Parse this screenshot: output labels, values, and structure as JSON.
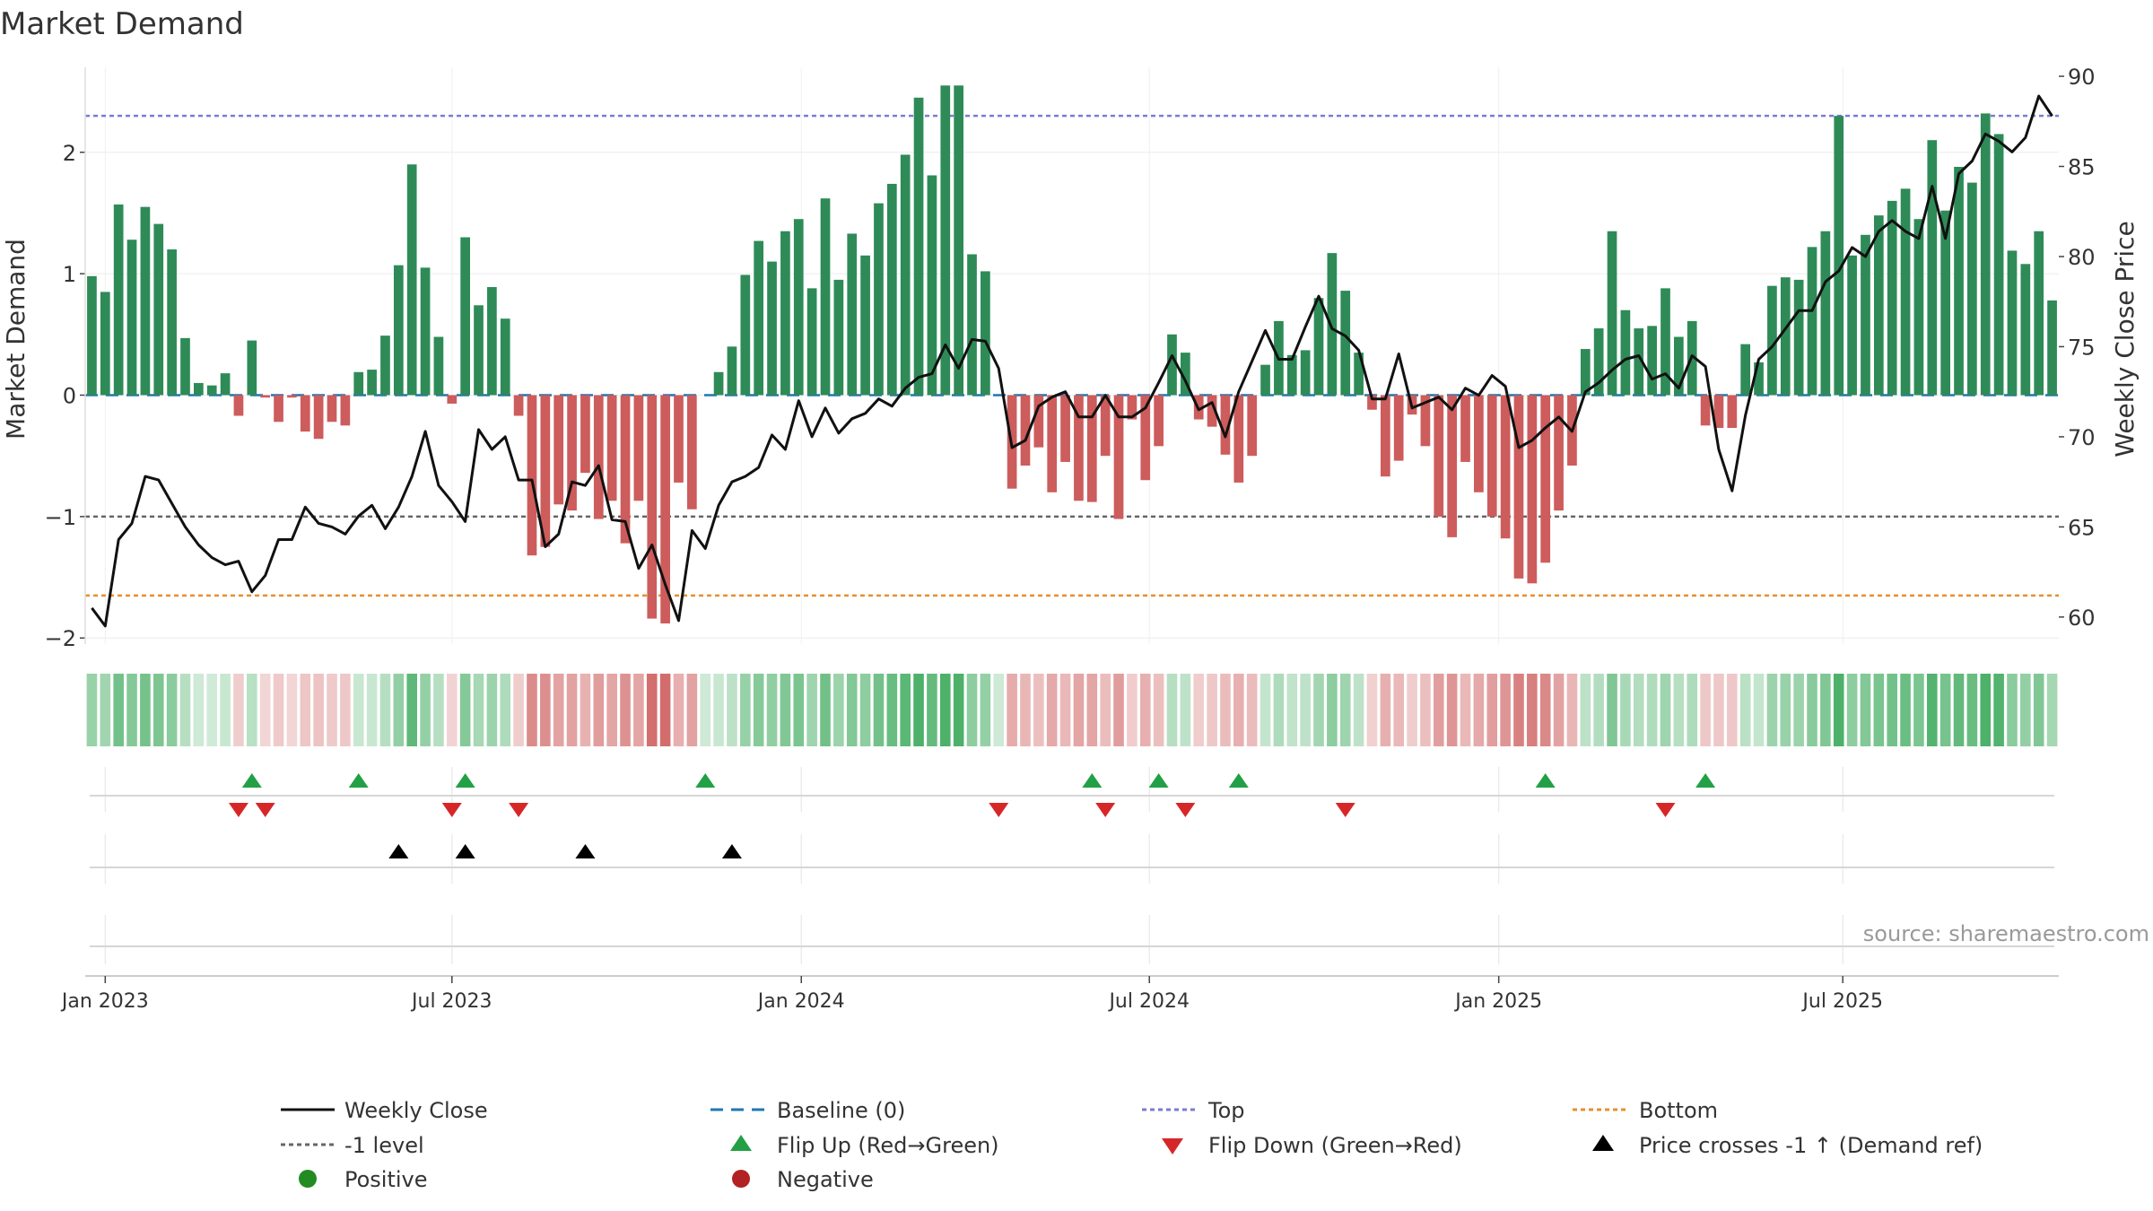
{
  "chart_data": {
    "type": "bar+line",
    "title": "Market Demand",
    "ylabel_left": "Market Demand",
    "ylabel_right": "Weekly Close Price",
    "source": "source: sharemaestro.com",
    "ylim_left": [
      -2.05,
      2.7
    ],
    "ylim_right": [
      58.5,
      90.5
    ],
    "yticks_left": [
      "2",
      "1",
      "0",
      "−1",
      "−2"
    ],
    "yticks_left_values": [
      2,
      1,
      0,
      -1,
      -2
    ],
    "yticks_right": [
      "90",
      "85",
      "80",
      "75",
      "70",
      "65",
      "60"
    ],
    "yticks_right_values": [
      90,
      85,
      80,
      75,
      70,
      65,
      60
    ],
    "x_ticks": [
      "Jan 2023",
      "Jul 2023",
      "Jan 2024",
      "Jul 2024",
      "Jan 2025",
      "Jul 2025"
    ],
    "x_tick_index": [
      1.5,
      27.5,
      53.7,
      79.8,
      106.0,
      131.8
    ],
    "reference_lines": {
      "top": 2.3,
      "bottom": -1.65,
      "minus_one": -1,
      "baseline": 0
    },
    "demand": [
      0.98,
      0.85,
      1.57,
      1.28,
      1.55,
      1.41,
      1.2,
      0.47,
      0.1,
      0.08,
      0.18,
      -0.17,
      0.45,
      -0.02,
      -0.22,
      -0.02,
      -0.3,
      -0.36,
      -0.22,
      -0.25,
      0.19,
      0.21,
      0.49,
      1.07,
      1.9,
      1.05,
      0.48,
      -0.07,
      1.3,
      0.74,
      0.89,
      0.63,
      -0.17,
      -1.32,
      -1.25,
      -0.9,
      -0.95,
      -0.64,
      -1.02,
      -0.87,
      -1.22,
      -0.87,
      -1.84,
      -1.88,
      -0.72,
      -0.94,
      0,
      0.19,
      0.4,
      0.99,
      1.27,
      1.1,
      1.35,
      1.45,
      0.88,
      1.62,
      0.95,
      1.33,
      1.15,
      1.58,
      1.74,
      1.98,
      2.45,
      1.81,
      2.55,
      2.55,
      1.16,
      1.02,
      0,
      -0.77,
      -0.58,
      -0.43,
      -0.8,
      -0.55,
      -0.87,
      -0.88,
      -0.5,
      -1.02,
      -0.2,
      -0.7,
      -0.42,
      0.5,
      0.35,
      -0.2,
      -0.26,
      -0.49,
      -0.72,
      -0.5,
      0.25,
      0.61,
      0.33,
      0.37,
      0.8,
      1.17,
      0.86,
      0.35,
      -0.12,
      -0.67,
      -0.54,
      -0.16,
      -0.42,
      -1.0,
      -1.17,
      -0.55,
      -0.8,
      -1.0,
      -1.18,
      -1.51,
      -1.55,
      -1.38,
      -0.95,
      -0.58,
      0.38,
      0.55,
      1.35,
      0.7,
      0.55,
      0.57,
      0.88,
      0.48,
      0.61,
      -0.25,
      -0.27,
      -0.27,
      0.42,
      0.27,
      0.9,
      0.97,
      0.95,
      1.22,
      1.35,
      2.3,
      1.15,
      1.32,
      1.48,
      1.6,
      1.7,
      1.45,
      2.1,
      1.52,
      1.88,
      1.75,
      2.32,
      2.15,
      1.19,
      1.08,
      1.35,
      0.78
    ],
    "close": [
      60.5,
      59.5,
      64.3,
      65.2,
      67.8,
      67.6,
      66.3,
      65.0,
      64.0,
      63.3,
      62.9,
      63.1,
      61.4,
      62.3,
      64.3,
      64.3,
      66.1,
      65.2,
      65.0,
      64.6,
      65.6,
      66.2,
      64.9,
      66.1,
      67.8,
      70.3,
      67.3,
      66.4,
      65.3,
      70.4,
      69.3,
      70.0,
      67.6,
      67.6,
      63.9,
      64.6,
      67.5,
      67.3,
      68.4,
      65.4,
      65.3,
      62.7,
      64.0,
      61.8,
      59.8,
      64.8,
      63.8,
      66.2,
      67.5,
      67.8,
      68.3,
      70.1,
      69.3,
      72.0,
      70.0,
      71.6,
      70.2,
      71.0,
      71.3,
      72.1,
      71.7,
      72.7,
      73.3,
      73.5,
      75.1,
      73.8,
      75.4,
      75.3,
      73.8,
      69.4,
      69.8,
      71.7,
      72.2,
      72.5,
      71.1,
      71.1,
      72.3,
      71.1,
      71.1,
      71.6,
      73.0,
      74.5,
      73.1,
      71.5,
      71.9,
      70.0,
      72.5,
      74.2,
      75.9,
      74.3,
      74.3,
      76.1,
      77.8,
      76.0,
      75.6,
      74.8,
      72.1,
      72.1,
      74.6,
      71.6,
      71.9,
      72.2,
      71.5,
      72.7,
      72.3,
      73.4,
      72.8,
      69.4,
      69.8,
      70.5,
      71.1,
      70.3,
      72.5,
      73.0,
      73.7,
      74.3,
      74.5,
      73.2,
      73.5,
      72.7,
      74.5,
      73.9,
      69.3,
      67.0,
      71.2,
      74.3,
      75.0,
      76.0,
      77.0,
      77.0,
      78.6,
      79.2,
      80.5,
      80.0,
      81.4,
      82.0,
      81.4,
      81.0,
      83.9,
      81.0,
      84.6,
      85.3,
      86.8,
      86.4,
      85.8,
      86.6,
      88.9,
      87.8
    ],
    "flip_up_index": [
      12,
      20,
      28,
      46,
      75,
      80,
      86,
      109,
      121
    ],
    "flip_down_index": [
      11,
      13,
      27,
      32,
      68,
      76,
      82,
      94,
      118
    ],
    "price_cross_index": [
      23,
      28,
      37,
      48
    ],
    "legend": [
      "Weekly Close",
      "Baseline (0)",
      "Top",
      "Bottom",
      "-1 level",
      "Flip Up (Red→Green)",
      "Flip Down (Green→Red)",
      "Price crosses -1 ↑ (Demand ref)",
      "Positive",
      "Negative"
    ],
    "colors": {
      "positive": "#2e8b57",
      "negative": "#cd5c5c",
      "close": "#111111",
      "baseline": "#1f77b4",
      "top": "#7b7bd8",
      "bottom": "#e6902a",
      "minus_one": "#666666",
      "flip_up": "#22a045",
      "flip_down": "#d62728",
      "cross": "#000000",
      "legend_positive": "#228b22",
      "legend_negative": "#b22222"
    }
  }
}
